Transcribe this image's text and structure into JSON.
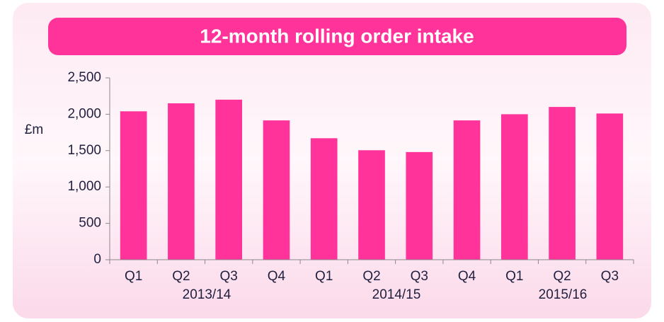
{
  "chart_data": {
    "type": "bar",
    "title": "12-month rolling order intake",
    "y_label": "£m",
    "categories": [
      "Q1",
      "Q2",
      "Q3",
      "Q4",
      "Q1",
      "Q2",
      "Q3",
      "Q4",
      "Q1",
      "Q2",
      "Q3"
    ],
    "groups": [
      "2013/14",
      "2014/15",
      "2015/16"
    ],
    "values": [
      2040,
      2150,
      2200,
      1915,
      1670,
      1505,
      1480,
      1915,
      2000,
      2100,
      2010
    ],
    "color": "#ff3399",
    "ylim": [
      0,
      2500
    ],
    "yticks": [
      0,
      500,
      {
        "value": 1000,
        "label": "1,000"
      },
      {
        "value": 1500,
        "label": "1,500"
      },
      {
        "value": 2000,
        "label": "2,000"
      },
      {
        "value": 2500,
        "label": "2,500"
      }
    ],
    "grid": false
  }
}
